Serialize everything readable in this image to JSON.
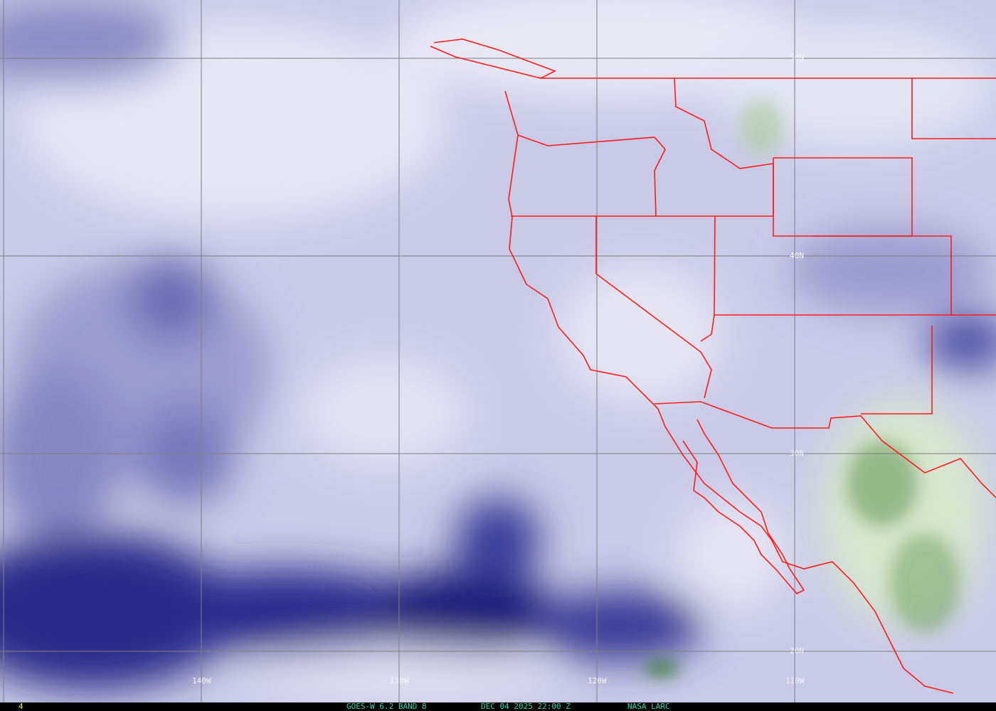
{
  "map": {
    "lat_labels": [
      "50N",
      "40N",
      "30N",
      "20N"
    ],
    "lon_labels": [
      "140W",
      "130W",
      "120W",
      "110W"
    ],
    "colors": {
      "boundary": "#ff1a1a",
      "grid": "#808080",
      "moist": "#1a1a78",
      "dry": "#e8e8f6",
      "land_green": "#4a8a3a"
    }
  },
  "footer": {
    "frame_number": "4",
    "satellite": "GOES-W 6.2 BAND 8",
    "datetime": "DEC 04 2025 22:00 Z",
    "source": "NASA LARC"
  }
}
